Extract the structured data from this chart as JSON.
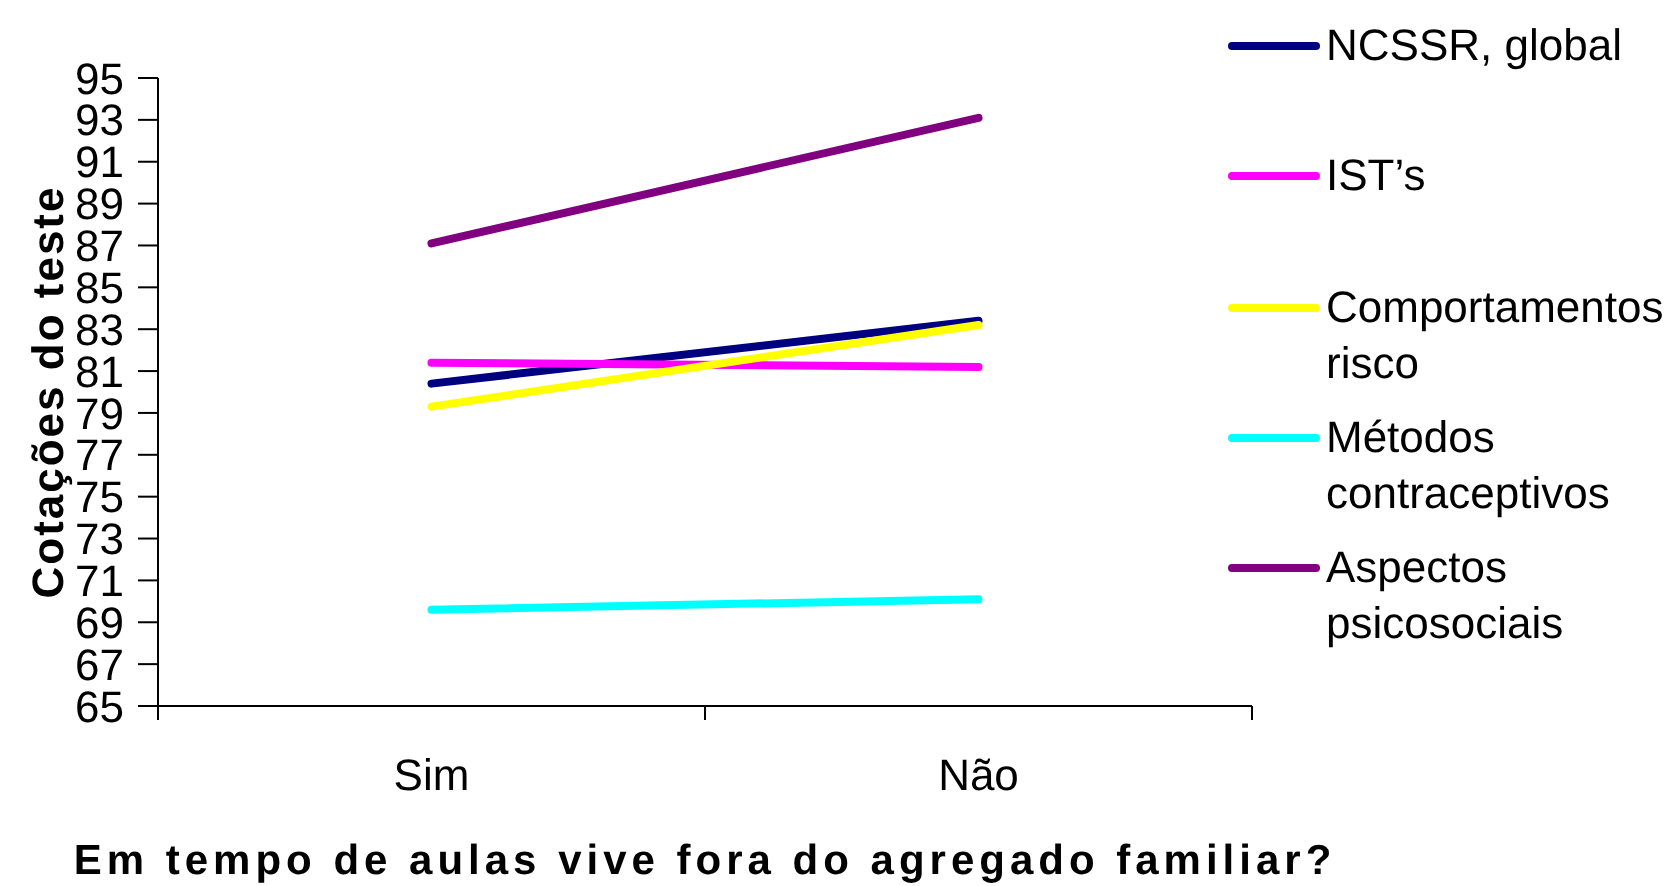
{
  "chart_data": {
    "type": "line",
    "xlabel": "Em tempo de aulas vive fora do agregado familiar?",
    "ylabel": "Cotações do teste",
    "categories": [
      "Sim",
      "Não"
    ],
    "series": [
      {
        "name": "NCSSR, global",
        "color": "#000080",
        "values": [
          80.4,
          83.4
        ]
      },
      {
        "name": "IST’s",
        "color": "#ff00ff",
        "values": [
          81.4,
          81.2
        ]
      },
      {
        "name": "Comportamentos risco",
        "color": "#ffff00",
        "values": [
          79.3,
          83.2
        ]
      },
      {
        "name": "Métodos contraceptivos",
        "color": "#00ffff",
        "values": [
          69.6,
          70.1
        ]
      },
      {
        "name": "Aspectos psicosociais",
        "color": "#800080",
        "values": [
          87.1,
          93.1
        ]
      }
    ],
    "ylim": [
      65,
      95
    ],
    "yticks": [
      65,
      67,
      69,
      71,
      73,
      75,
      77,
      79,
      81,
      83,
      85,
      87,
      89,
      91,
      93,
      95
    ],
    "grid": false,
    "legend": "right",
    "marker": "none",
    "line_style": "solid"
  }
}
